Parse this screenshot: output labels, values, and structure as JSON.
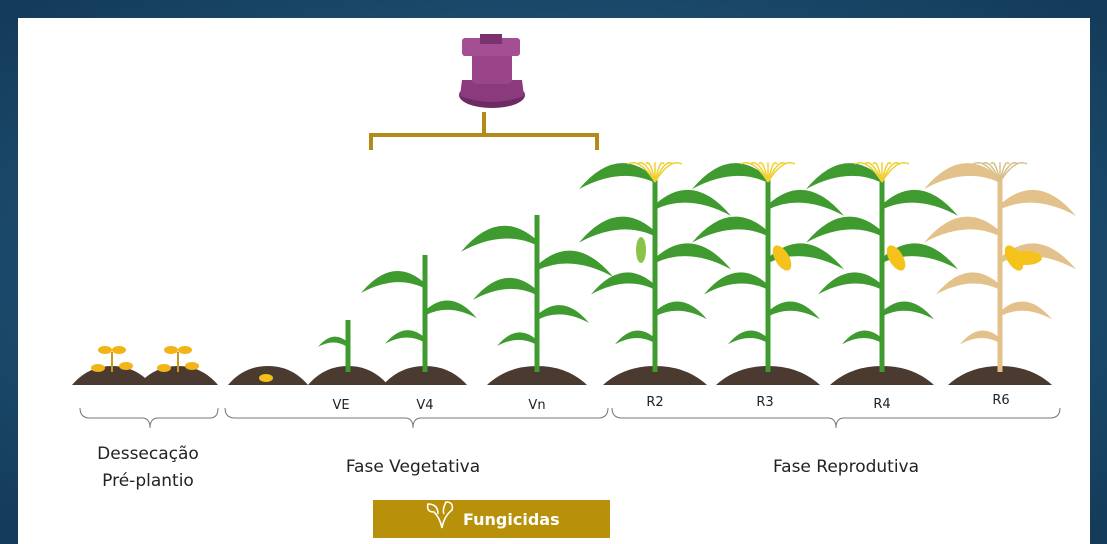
{
  "stages": [
    "VE",
    "V4",
    "Vn",
    "R2",
    "R3",
    "R4",
    "R6"
  ],
  "phases": [
    {
      "lines": [
        "Dessecação",
        "Pré-plantio"
      ]
    },
    {
      "lines": [
        "Fase Vegetativa"
      ]
    },
    {
      "lines": [
        "Fase Reprodutiva"
      ]
    }
  ],
  "button": {
    "label": "Fungicidas"
  }
}
